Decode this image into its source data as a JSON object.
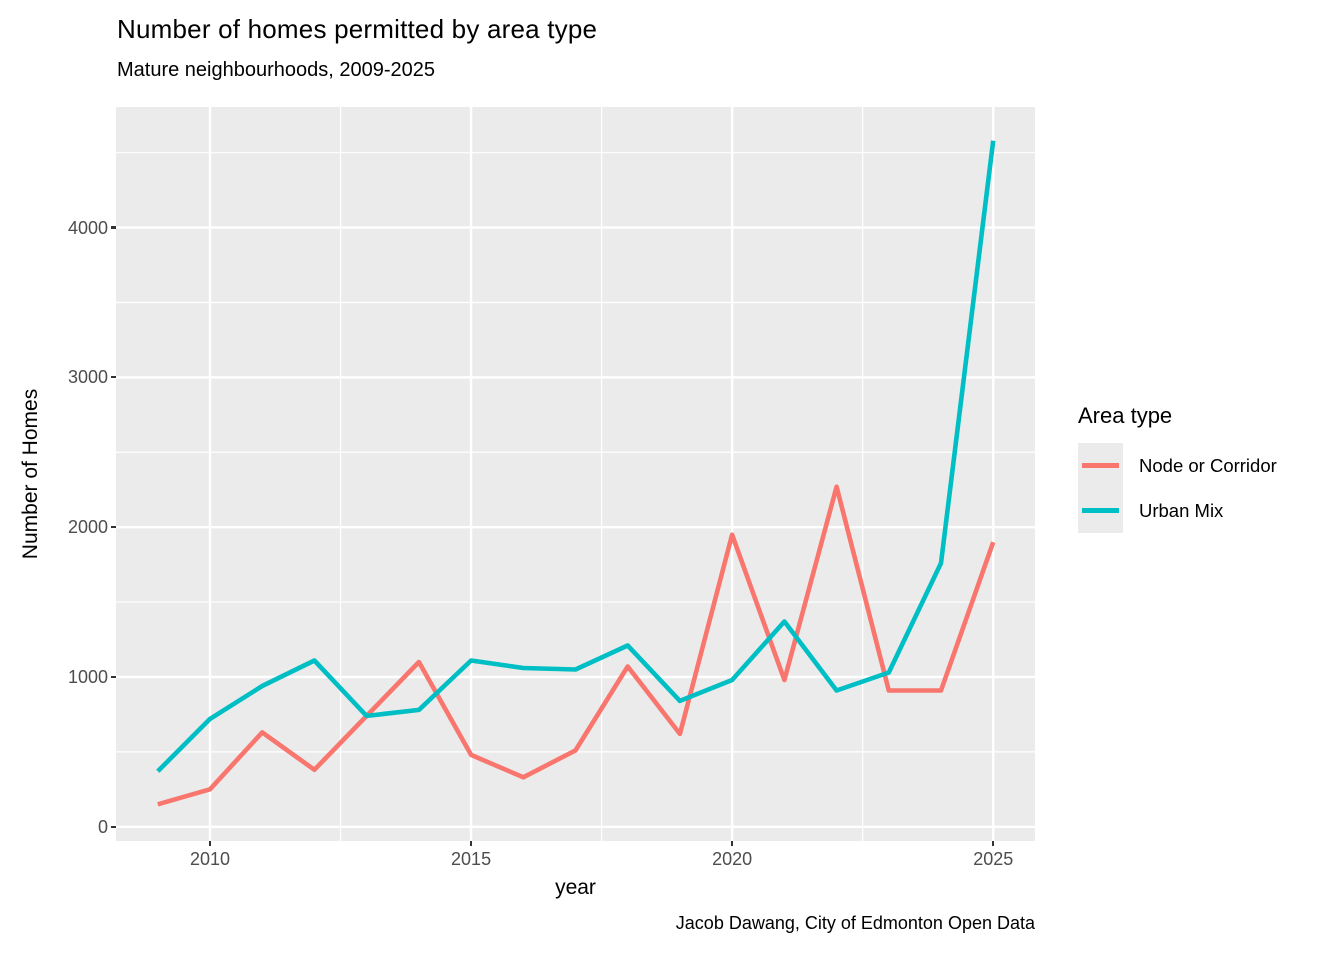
{
  "title": "Number of homes permitted by area type",
  "subtitle": "Mature neighbourhoods, 2009-2025",
  "caption": "Jacob Dawang, City of Edmonton Open Data",
  "x_axis_title": "year",
  "y_axis_title": "Number of Homes",
  "legend": {
    "title": "Area type",
    "items": [
      {
        "label": "Node or Corridor",
        "color": "#F8766D"
      },
      {
        "label": "Urban Mix",
        "color": "#00BFC4"
      }
    ]
  },
  "colors": {
    "panel_background": "#EBEBEB",
    "gridline": "#FFFFFF",
    "axis_text": "#4D4D4D",
    "tick_mark": "#333333",
    "node_or_corridor": "#F8766D",
    "urban_mix": "#00BFC4"
  },
  "chart_data": {
    "type": "line",
    "title": "Number of homes permitted by area type",
    "subtitle": "Mature neighbourhoods, 2009-2025",
    "xlabel": "year",
    "ylabel": "Number of Homes",
    "legend_title": "Area type",
    "legend_position": "right",
    "grid": true,
    "x": [
      2009,
      2010,
      2011,
      2012,
      2013,
      2014,
      2015,
      2016,
      2017,
      2018,
      2019,
      2020,
      2021,
      2022,
      2023,
      2024,
      2025
    ],
    "series": [
      {
        "name": "Node or Corridor",
        "color": "#F8766D",
        "values": [
          150,
          250,
          630,
          380,
          740,
          1100,
          480,
          330,
          510,
          1070,
          620,
          1950,
          980,
          2270,
          910,
          910,
          1900
        ]
      },
      {
        "name": "Urban Mix",
        "color": "#00BFC4",
        "values": [
          370,
          720,
          940,
          1110,
          740,
          780,
          1110,
          1060,
          1050,
          1210,
          840,
          980,
          1370,
          910,
          1030,
          1760,
          4580
        ]
      }
    ],
    "xlim": [
      2008.2,
      2025.8
    ],
    "ylim": [
      -95,
      4805
    ],
    "x_major_ticks": [
      2010,
      2015,
      2020,
      2025
    ],
    "x_minor_ticks": [
      2012.5,
      2017.5,
      2022.5
    ],
    "y_major_ticks": [
      0,
      1000,
      2000,
      3000,
      4000
    ],
    "y_minor_ticks": [
      500,
      1500,
      2500,
      3500,
      4500
    ]
  }
}
